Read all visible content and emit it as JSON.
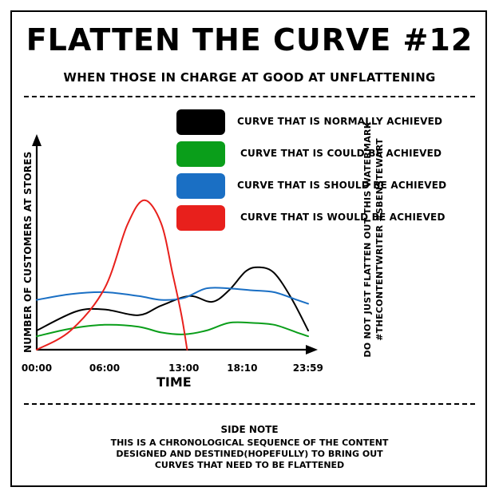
{
  "header": {
    "title": "FLATTEN THE CURVE #12",
    "subtitle": "WHEN THOSE IN CHARGE AT GOOD AT UNFLATTENING"
  },
  "watermark": {
    "line1": "DO NOT JUST FLATTEN OUT THIS WATERMARK",
    "line2": "#THECONTENTWRITER #SBENSTEWART"
  },
  "side_note": {
    "heading": "SIDE NOTE",
    "lines": [
      "THIS IS A CHRONOLOGICAL SEQUENCE OF THE CONTENT",
      "DESIGNED AND DESTINED(HOPEFULLY) TO BRING OUT",
      "CURVES THAT NEED TO BE FLATTENED"
    ]
  },
  "chart_data": {
    "type": "line",
    "title": "",
    "xlabel": "TIME",
    "ylabel": "NUMBER OF CUSTOMERS AT STORES",
    "x_ticks": [
      "00:00",
      "06:00",
      "13:00",
      "18:10",
      "23:59"
    ],
    "x_tick_hours": [
      0,
      6,
      13,
      18.1667,
      23.9833
    ],
    "xlim": [
      0,
      24
    ],
    "ylim": [
      0,
      10
    ],
    "grid": false,
    "legend_placement": "top",
    "series": [
      {
        "name": "CURVE THAT IS NORMALLY ACHIEVED",
        "color": "#000000",
        "points": [
          [
            0,
            1.0
          ],
          [
            3.5,
            2.0
          ],
          [
            6,
            2.1
          ],
          [
            9,
            1.8
          ],
          [
            11,
            2.3
          ],
          [
            13.5,
            2.8
          ],
          [
            15.5,
            2.5
          ],
          [
            17,
            3.1
          ],
          [
            18.5,
            4.1
          ],
          [
            19.7,
            4.3
          ],
          [
            21,
            4.0
          ],
          [
            22.5,
            2.7
          ],
          [
            24,
            1.0
          ]
        ]
      },
      {
        "name": "CURVE THAT IS COULD BE ACHIEVED",
        "color": "#0a9e1a",
        "points": [
          [
            0,
            0.7
          ],
          [
            3,
            1.1
          ],
          [
            6,
            1.3
          ],
          [
            9,
            1.2
          ],
          [
            11,
            0.9
          ],
          [
            13,
            0.8
          ],
          [
            15,
            1.0
          ],
          [
            17,
            1.4
          ],
          [
            19,
            1.4
          ],
          [
            21,
            1.3
          ],
          [
            23,
            0.9
          ],
          [
            24,
            0.7
          ]
        ]
      },
      {
        "name": "CURVE THAT IS SHOULD BE ACHIEVED",
        "color": "#1a6fc4",
        "points": [
          [
            0,
            2.6
          ],
          [
            3,
            2.9
          ],
          [
            6,
            3.0
          ],
          [
            9,
            2.8
          ],
          [
            11,
            2.6
          ],
          [
            13,
            2.7
          ],
          [
            15,
            3.2
          ],
          [
            17,
            3.2
          ],
          [
            19,
            3.1
          ],
          [
            21,
            3.0
          ],
          [
            23,
            2.6
          ],
          [
            24,
            2.4
          ]
        ]
      },
      {
        "name": "CURVE THAT IS WOULD BE ACHIEVED",
        "color": "#e8201c",
        "points": [
          [
            0,
            0
          ],
          [
            3,
            1.0
          ],
          [
            6,
            3.2
          ],
          [
            8,
            6.5
          ],
          [
            9.5,
            7.8
          ],
          [
            11,
            6.6
          ],
          [
            12,
            4.0
          ],
          [
            12.8,
            1.8
          ],
          [
            13.3,
            0
          ]
        ]
      }
    ]
  }
}
